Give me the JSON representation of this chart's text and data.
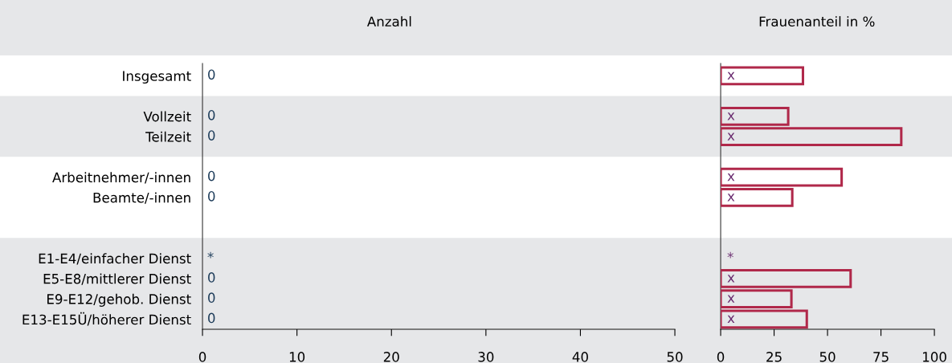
{
  "chart_data": [
    {
      "type": "bar",
      "orientation": "horizontal",
      "title": "Anzahl",
      "categories": [
        "Insgesamt",
        null,
        "Vollzeit",
        "Teilzeit",
        null,
        "Arbeitnehmer/-innen",
        "Beamte/-innen",
        null,
        null,
        "E1-E4/einfacher Dienst",
        "E5-E8/mittlerer Dienst",
        "E9-E12/gehob. Dienst",
        "E13-E15Ü/höherer Dienst"
      ],
      "series": [
        {
          "color": "#1d3c5a",
          "values": [
            0,
            null,
            0,
            0,
            null,
            0,
            0,
            null,
            null,
            null,
            0,
            0,
            0
          ],
          "value_labels": [
            "0",
            null,
            "0",
            "0",
            null,
            "0",
            "0",
            null,
            null,
            "*",
            "0",
            "0",
            "0"
          ]
        }
      ],
      "xlim": [
        0,
        50
      ],
      "xticks": [
        0,
        10,
        20,
        30,
        40,
        50
      ],
      "grid": false,
      "legend": false
    },
    {
      "type": "bar",
      "orientation": "horizontal",
      "title": "Frauenanteil in %",
      "categories": [
        null,
        null,
        null,
        null,
        null,
        null,
        null,
        null,
        null,
        null,
        null,
        null,
        null
      ],
      "series": [
        {
          "color": "#b0284a",
          "values": [
            38.5,
            null,
            31.6,
            84.5,
            null,
            56.6,
            33.5,
            null,
            null,
            null,
            60.8,
            33.1,
            40.3
          ],
          "value_labels": [
            "x",
            null,
            "x",
            "x",
            null,
            "x",
            "x",
            null,
            null,
            "*",
            "x",
            "x",
            "x"
          ]
        }
      ],
      "xlim": [
        0,
        100
      ],
      "xticks": [
        0,
        25,
        50,
        75,
        100
      ],
      "tick_labels": "x",
      "grid": false,
      "legend": false
    }
  ]
}
